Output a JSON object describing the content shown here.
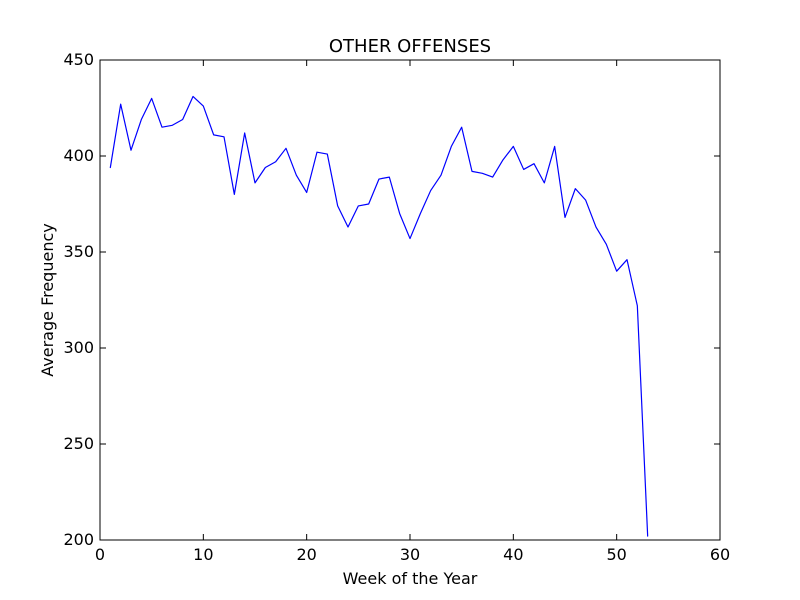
{
  "chart_data": {
    "type": "line",
    "title": "OTHER OFFENSES",
    "xlabel": "Week of the Year",
    "ylabel": "Average Frequency",
    "xlim": [
      0,
      60
    ],
    "ylim": [
      200,
      450
    ],
    "x_ticks": [
      0,
      10,
      20,
      30,
      40,
      50,
      60
    ],
    "y_ticks": [
      200,
      250,
      300,
      350,
      400,
      450
    ],
    "x_tick_labels": [
      "0",
      "10",
      "20",
      "30",
      "40",
      "50",
      "60"
    ],
    "y_tick_labels": [
      "200",
      "250",
      "300",
      "350",
      "400",
      "450"
    ],
    "grid": false,
    "legend": "none",
    "series": [
      {
        "color": "#0000ff",
        "x": [
          1,
          2,
          3,
          4,
          5,
          6,
          7,
          8,
          9,
          10,
          11,
          12,
          13,
          14,
          15,
          16,
          17,
          18,
          19,
          20,
          21,
          22,
          23,
          24,
          25,
          26,
          27,
          28,
          29,
          30,
          31,
          32,
          33,
          34,
          35,
          36,
          37,
          38,
          39,
          40,
          41,
          42,
          43,
          44,
          45,
          46,
          47,
          48,
          49,
          50,
          51,
          52,
          53
        ],
        "y": [
          394,
          427,
          403,
          419,
          430,
          415,
          416,
          419,
          431,
          426,
          411,
          410,
          380,
          412,
          386,
          394,
          397,
          404,
          390,
          381,
          402,
          401,
          374,
          363,
          374,
          375,
          388,
          389,
          370,
          357,
          370,
          382,
          390,
          405,
          415,
          392,
          391,
          389,
          398,
          405,
          393,
          396,
          386,
          405,
          368,
          383,
          377,
          363,
          354,
          340,
          346,
          322,
          202
        ]
      }
    ]
  }
}
